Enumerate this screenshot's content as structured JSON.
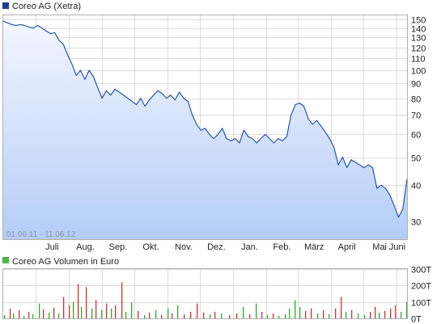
{
  "chart_data": [
    {
      "type": "area",
      "title": "Coreo AG (Xetra)",
      "date_range": "01.06.11 - 11.06.12",
      "colors": {
        "line": "#2a55a0",
        "fill_top": "#f2f6ff",
        "fill_bottom": "#b5cdf7",
        "legend": "#1c3f8c"
      },
      "y_scale": "log",
      "ylim": [
        26,
        155
      ],
      "y_ticks": [
        "150",
        "140",
        "130",
        "120",
        "110",
        "100",
        "90",
        "80",
        "70",
        "60",
        "50",
        "40",
        "30"
      ],
      "y_tick_values": [
        150,
        140,
        130,
        120,
        110,
        100,
        90,
        80,
        70,
        60,
        50,
        40,
        30
      ],
      "x_ticks": [
        "Juli",
        "Aug.",
        "Sep.",
        "Okt.",
        "Nov.",
        "Dez.",
        "Jan.",
        "Feb.",
        "März",
        "April",
        "Mai",
        "Juni"
      ],
      "x_tick_dates": [
        "2011-07-01",
        "2011-08-01",
        "2011-09-01",
        "2011-10-01",
        "2011-11-01",
        "2011-12-01",
        "2012-01-01",
        "2012-02-01",
        "2012-03-01",
        "2012-04-01",
        "2012-05-01",
        "2012-06-01"
      ],
      "x_start": "2011-06-01",
      "x_end": "2012-06-11",
      "series": [
        {
          "points": [
            [
              "2011-06-01",
              148
            ],
            [
              "2011-06-05",
              146
            ],
            [
              "2011-06-09",
              144
            ],
            [
              "2011-06-13",
              143
            ],
            [
              "2011-06-17",
              144
            ],
            [
              "2011-06-21",
              143
            ],
            [
              "2011-06-25",
              141
            ],
            [
              "2011-06-29",
              140
            ],
            [
              "2011-07-03",
              143
            ],
            [
              "2011-07-07",
              140
            ],
            [
              "2011-07-11",
              137
            ],
            [
              "2011-07-15",
              134
            ],
            [
              "2011-07-19",
              135
            ],
            [
              "2011-07-23",
              127
            ],
            [
              "2011-07-27",
              123
            ],
            [
              "2011-07-31",
              113
            ],
            [
              "2011-08-04",
              105
            ],
            [
              "2011-08-08",
              96
            ],
            [
              "2011-08-12",
              100
            ],
            [
              "2011-08-16",
              93
            ],
            [
              "2011-08-20",
              100
            ],
            [
              "2011-08-24",
              95
            ],
            [
              "2011-08-28",
              87
            ],
            [
              "2011-09-01",
              80
            ],
            [
              "2011-09-05",
              85
            ],
            [
              "2011-09-09",
              82
            ],
            [
              "2011-09-13",
              86
            ],
            [
              "2011-09-17",
              84
            ],
            [
              "2011-09-21",
              82
            ],
            [
              "2011-09-25",
              80
            ],
            [
              "2011-09-29",
              78
            ],
            [
              "2011-10-03",
              76
            ],
            [
              "2011-10-07",
              80
            ],
            [
              "2011-10-11",
              75
            ],
            [
              "2011-10-15",
              79
            ],
            [
              "2011-10-19",
              82
            ],
            [
              "2011-10-23",
              85
            ],
            [
              "2011-10-27",
              83
            ],
            [
              "2011-10-31",
              80
            ],
            [
              "2011-11-04",
              82
            ],
            [
              "2011-11-08",
              79
            ],
            [
              "2011-11-12",
              84
            ],
            [
              "2011-11-16",
              80
            ],
            [
              "2011-11-20",
              78
            ],
            [
              "2011-11-24",
              70
            ],
            [
              "2011-11-28",
              65
            ],
            [
              "2011-12-02",
              62
            ],
            [
              "2011-12-06",
              63
            ],
            [
              "2011-12-10",
              60
            ],
            [
              "2011-12-14",
              58
            ],
            [
              "2011-12-18",
              60
            ],
            [
              "2011-12-22",
              63
            ],
            [
              "2011-12-26",
              58
            ],
            [
              "2011-12-30",
              57
            ],
            [
              "2012-01-03",
              58
            ],
            [
              "2012-01-07",
              56
            ],
            [
              "2012-01-11",
              62
            ],
            [
              "2012-01-15",
              59
            ],
            [
              "2012-01-19",
              58
            ],
            [
              "2012-01-23",
              56
            ],
            [
              "2012-01-27",
              58
            ],
            [
              "2012-01-31",
              60
            ],
            [
              "2012-02-04",
              58
            ],
            [
              "2012-02-08",
              56
            ],
            [
              "2012-02-12",
              58
            ],
            [
              "2012-02-16",
              57
            ],
            [
              "2012-02-20",
              59
            ],
            [
              "2012-02-24",
              70
            ],
            [
              "2012-02-28",
              76
            ],
            [
              "2012-03-03",
              77
            ],
            [
              "2012-03-07",
              75
            ],
            [
              "2012-03-11",
              68
            ],
            [
              "2012-03-15",
              65
            ],
            [
              "2012-03-19",
              67
            ],
            [
              "2012-03-23",
              64
            ],
            [
              "2012-03-27",
              61
            ],
            [
              "2012-03-31",
              58
            ],
            [
              "2012-04-04",
              54
            ],
            [
              "2012-04-08",
              47
            ],
            [
              "2012-04-12",
              50
            ],
            [
              "2012-04-16",
              46
            ],
            [
              "2012-04-20",
              49
            ],
            [
              "2012-04-24",
              48
            ],
            [
              "2012-04-28",
              47
            ],
            [
              "2012-05-02",
              46
            ],
            [
              "2012-05-06",
              47
            ],
            [
              "2012-05-10",
              46
            ],
            [
              "2012-05-14",
              39
            ],
            [
              "2012-05-18",
              40
            ],
            [
              "2012-05-22",
              39
            ],
            [
              "2012-05-26",
              37
            ],
            [
              "2012-05-30",
              34
            ],
            [
              "2012-06-03",
              31
            ],
            [
              "2012-06-07",
              33
            ],
            [
              "2012-06-11",
              42
            ]
          ]
        }
      ]
    },
    {
      "type": "bar",
      "title": "Coreo AG Volumen in Euro",
      "colors": {
        "up": "#2ea82e",
        "down": "#c83232",
        "legend": "#49b649"
      },
      "ylim": [
        0,
        300000
      ],
      "y_ticks": [
        "300T",
        "200T",
        "100T",
        "0T"
      ],
      "y_tick_values": [
        300000,
        200000,
        100000,
        0
      ],
      "x_start": "2011-06-01",
      "x_end": "2012-06-11",
      "series": [
        {
          "bars": [
            [
              "2011-06-02",
              20000,
              "up"
            ],
            [
              "2011-06-07",
              60000,
              "down"
            ],
            [
              "2011-06-10",
              30000,
              "up"
            ],
            [
              "2011-06-15",
              50000,
              "down"
            ],
            [
              "2011-06-20",
              15000,
              "up"
            ],
            [
              "2011-06-24",
              40000,
              "down"
            ],
            [
              "2011-06-28",
              25000,
              "up"
            ],
            [
              "2011-07-04",
              90000,
              "up"
            ],
            [
              "2011-07-08",
              55000,
              "down"
            ],
            [
              "2011-07-13",
              35000,
              "up"
            ],
            [
              "2011-07-18",
              65000,
              "down"
            ],
            [
              "2011-07-22",
              30000,
              "up"
            ],
            [
              "2011-07-27",
              130000,
              "down"
            ],
            [
              "2011-08-01",
              80000,
              "down"
            ],
            [
              "2011-08-05",
              100000,
              "up"
            ],
            [
              "2011-08-09",
              210000,
              "down"
            ],
            [
              "2011-08-12",
              70000,
              "up"
            ],
            [
              "2011-08-17",
              190000,
              "down"
            ],
            [
              "2011-08-22",
              60000,
              "up"
            ],
            [
              "2011-08-26",
              110000,
              "down"
            ],
            [
              "2011-08-31",
              50000,
              "up"
            ],
            [
              "2011-09-05",
              90000,
              "down"
            ],
            [
              "2011-09-09",
              60000,
              "up"
            ],
            [
              "2011-09-13",
              80000,
              "down"
            ],
            [
              "2011-09-19",
              220000,
              "down"
            ],
            [
              "2011-09-23",
              40000,
              "up"
            ],
            [
              "2011-09-28",
              95000,
              "up"
            ],
            [
              "2011-10-04",
              45000,
              "down"
            ],
            [
              "2011-10-10",
              20000,
              "up"
            ],
            [
              "2011-10-15",
              35000,
              "down"
            ],
            [
              "2011-10-21",
              50000,
              "up"
            ],
            [
              "2011-10-26",
              20000,
              "down"
            ],
            [
              "2011-11-01",
              60000,
              "up"
            ],
            [
              "2011-11-05",
              30000,
              "down"
            ],
            [
              "2011-11-10",
              80000,
              "up"
            ],
            [
              "2011-11-16",
              25000,
              "down"
            ],
            [
              "2011-11-22",
              40000,
              "down"
            ],
            [
              "2011-11-28",
              90000,
              "down"
            ],
            [
              "2011-12-04",
              35000,
              "down"
            ],
            [
              "2011-12-10",
              25000,
              "up"
            ],
            [
              "2011-12-15",
              40000,
              "down"
            ],
            [
              "2011-12-21",
              30000,
              "up"
            ],
            [
              "2011-12-28",
              20000,
              "down"
            ],
            [
              "2012-01-04",
              30000,
              "down"
            ],
            [
              "2012-01-10",
              70000,
              "up"
            ],
            [
              "2012-01-16",
              25000,
              "down"
            ],
            [
              "2012-01-22",
              90000,
              "up"
            ],
            [
              "2012-01-27",
              40000,
              "down"
            ],
            [
              "2012-02-02",
              20000,
              "up"
            ],
            [
              "2012-02-07",
              30000,
              "down"
            ],
            [
              "2012-02-12",
              15000,
              "up"
            ],
            [
              "2012-02-18",
              25000,
              "up"
            ],
            [
              "2012-02-22",
              60000,
              "up"
            ],
            [
              "2012-02-27",
              110000,
              "up"
            ],
            [
              "2012-03-03",
              70000,
              "up"
            ],
            [
              "2012-03-08",
              45000,
              "down"
            ],
            [
              "2012-03-13",
              60000,
              "down"
            ],
            [
              "2012-03-19",
              30000,
              "up"
            ],
            [
              "2012-03-25",
              50000,
              "down"
            ],
            [
              "2012-03-30",
              25000,
              "up"
            ],
            [
              "2012-04-05",
              60000,
              "down"
            ],
            [
              "2012-04-10",
              130000,
              "down"
            ],
            [
              "2012-04-15",
              40000,
              "up"
            ],
            [
              "2012-04-20",
              50000,
              "down"
            ],
            [
              "2012-04-26",
              30000,
              "up"
            ],
            [
              "2012-05-02",
              20000,
              "up"
            ],
            [
              "2012-05-07",
              40000,
              "down"
            ],
            [
              "2012-05-12",
              70000,
              "down"
            ],
            [
              "2012-05-16",
              35000,
              "up"
            ],
            [
              "2012-05-21",
              45000,
              "down"
            ],
            [
              "2012-05-26",
              60000,
              "down"
            ],
            [
              "2012-05-31",
              80000,
              "down"
            ],
            [
              "2012-06-05",
              40000,
              "up"
            ],
            [
              "2012-06-10",
              100000,
              "up"
            ]
          ]
        }
      ]
    }
  ]
}
